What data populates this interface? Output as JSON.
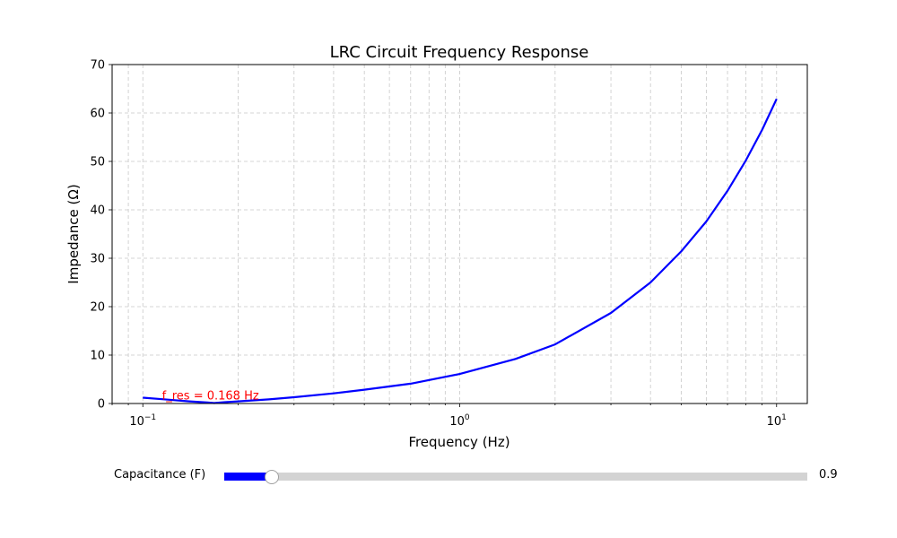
{
  "chart_data": {
    "type": "line",
    "title": "LRC Circuit Frequency Response",
    "xlabel": "Frequency (Hz)",
    "ylabel": "Impedance (Ω)",
    "xscale": "log",
    "xlim": [
      0.08,
      12.5
    ],
    "ylim": [
      0,
      70
    ],
    "xticks": [
      {
        "value": 0.1,
        "base": "10",
        "exp": "−1"
      },
      {
        "value": 1,
        "base": "10",
        "exp": "0"
      },
      {
        "value": 10,
        "base": "10",
        "exp": "1"
      }
    ],
    "yticks": [
      0,
      10,
      20,
      30,
      40,
      50,
      60,
      70
    ],
    "grid": true,
    "series": [
      {
        "color": "#0000ff",
        "x": [
          0.1,
          0.12,
          0.14,
          0.16,
          0.168,
          0.18,
          0.2,
          0.25,
          0.3,
          0.4,
          0.5,
          0.7,
          1.0,
          1.5,
          2.0,
          3.0,
          4.0,
          5.0,
          6.0,
          7.0,
          8.0,
          9.0,
          10.0
        ],
        "y": [
          1.2,
          0.8,
          0.45,
          0.2,
          0.1,
          0.25,
          0.45,
          0.85,
          1.3,
          2.1,
          2.85,
          4.1,
          6.1,
          9.2,
          12.2,
          18.7,
          25.0,
          31.4,
          37.6,
          43.9,
          50.2,
          56.5,
          62.9
        ]
      }
    ],
    "annotation": {
      "text": "f_res = 0.168 Hz",
      "x": 0.115,
      "y": 0.8,
      "color": "#ff0000"
    }
  },
  "slider": {
    "label": "Capacitance (F)",
    "value_text": "0.9",
    "fraction": 0.082,
    "fill_color": "#0000ff"
  }
}
